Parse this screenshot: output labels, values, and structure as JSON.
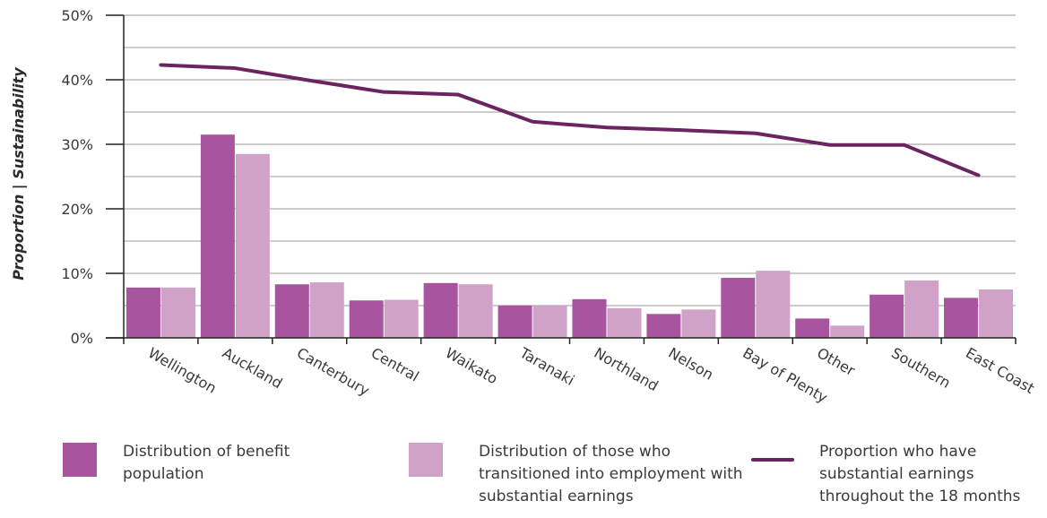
{
  "colors": {
    "benefit": "#a8549e",
    "transitioned": "#d0a2c8",
    "line": "#6a2560",
    "grid": "#9a9a9a",
    "axis": "#222222"
  },
  "chart_data": {
    "type": "bar",
    "ylabel": "Proportion | Sustainability",
    "ylim": [
      0,
      50
    ],
    "yticks": [
      "0%",
      "10%",
      "20%",
      "30%",
      "40%",
      "50%"
    ],
    "grid": true,
    "categories": [
      "Wellington",
      "Auckland",
      "Canterbury",
      "Central",
      "Waikato",
      "Taranaki",
      "Northland",
      "Nelson",
      "Bay of Plenty",
      "Other",
      "Southern",
      "East Coast"
    ],
    "series": [
      {
        "name": "Distribution of benefit population",
        "kind": "bar",
        "values": [
          7.8,
          31.5,
          8.3,
          5.8,
          8.5,
          5.0,
          6.0,
          3.7,
          9.3,
          3.0,
          6.7,
          6.2
        ]
      },
      {
        "name": "Distribution of those who transitioned into employment with substantial earnings",
        "kind": "bar",
        "values": [
          7.8,
          28.5,
          8.6,
          5.9,
          8.3,
          5.0,
          4.6,
          4.4,
          10.4,
          1.9,
          8.9,
          7.5
        ]
      },
      {
        "name": "Proportion who have substantial earnings throughout the 18 months",
        "kind": "line",
        "values": [
          42.3,
          41.8,
          39.9,
          38.1,
          37.7,
          33.5,
          32.6,
          32.2,
          31.7,
          29.9,
          29.9,
          25.2
        ]
      }
    ]
  },
  "legend": [
    {
      "label": "Distribution of benefit population"
    },
    {
      "label": "Distribution of those who transitioned into employment with substantial earnings"
    },
    {
      "label": "Proportion who have substantial earnings throughout the 18 months"
    }
  ]
}
